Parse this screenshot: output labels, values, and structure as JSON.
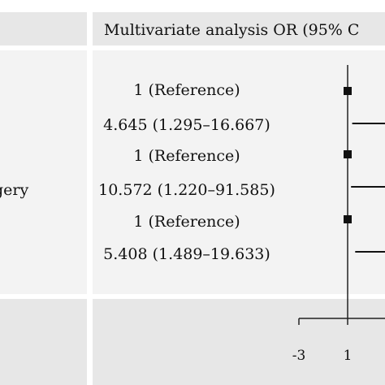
{
  "header": {
    "title": "Multivariate analysis  OR (95% C"
  },
  "row_label": "gery",
  "chart_data": {
    "type": "forest",
    "title": "",
    "rows": [
      {
        "label": "1 (Reference)",
        "or": 1,
        "lo": 1,
        "hi": 1
      },
      {
        "label": "4.645 (1.295–16.667)",
        "or": 4.645,
        "lo": 1.295,
        "hi": 16.667
      },
      {
        "label": "1 (Reference)",
        "or": 1,
        "lo": 1,
        "hi": 1
      },
      {
        "label": "10.572 (1.220–91.585)",
        "or": 10.572,
        "lo": 1.22,
        "hi": 91.585
      },
      {
        "label": "1 (Reference)",
        "or": 1,
        "lo": 1,
        "hi": 1
      },
      {
        "label": "5.408 (1.489–19.633)",
        "or": 5.408,
        "lo": 1.489,
        "hi": 19.633
      }
    ],
    "x_ticks": [
      "-3",
      "1"
    ],
    "reference_line": 1
  }
}
